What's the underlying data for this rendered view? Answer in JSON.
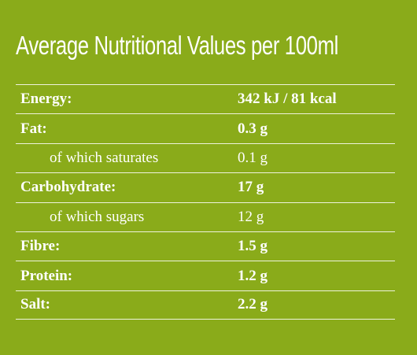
{
  "title": "Average Nutritional Values per 100ml",
  "rows": [
    {
      "label": "Energy:",
      "value": "342 kJ / 81 kcal"
    },
    {
      "label": "Fat:",
      "value": "0.3 g"
    },
    {
      "label": "of which saturates",
      "value": "0.1 g"
    },
    {
      "label": "Carbohydrate:",
      "value": "17 g"
    },
    {
      "label": "of which sugars",
      "value": "12 g"
    },
    {
      "label": "Fibre:",
      "value": "1.5 g"
    },
    {
      "label": "Protein:",
      "value": "1.2 g"
    },
    {
      "label": "Salt:",
      "value": "2.2 g"
    }
  ],
  "colors": {
    "background": "#8aab1a",
    "text": "#ffffff",
    "divider": "#ffffff"
  }
}
